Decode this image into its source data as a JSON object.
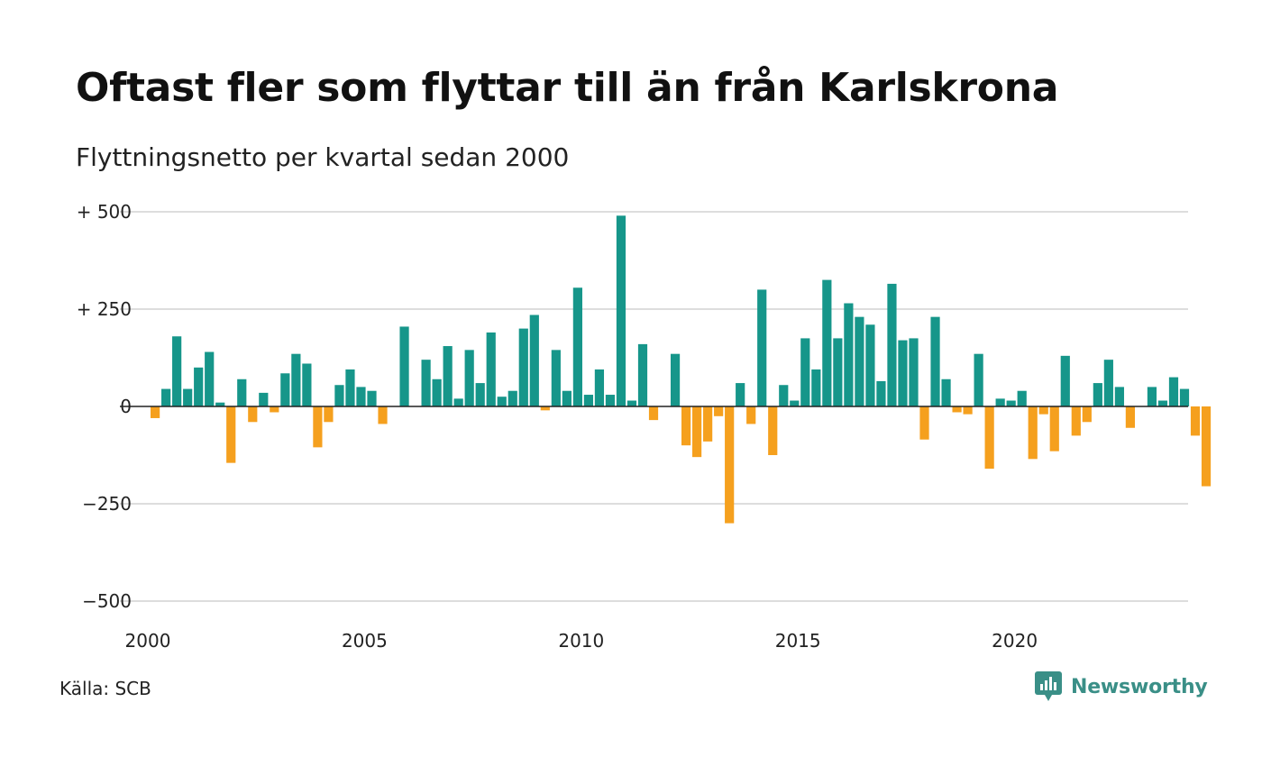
{
  "header": {
    "title": "Oftast fler som flyttar till än från Karlskrona",
    "subtitle": "Flyttningsnetto per kvartal sedan 2000"
  },
  "footer": {
    "source": "Källa: SCB",
    "brand": "Newsworthy",
    "brand_icon": "newsworthy-logo-icon"
  },
  "colors": {
    "positive": "#16968a",
    "negative": "#f5a01e",
    "grid": "#dddddd",
    "brand": "#3a8f87"
  },
  "chart_data": {
    "type": "bar",
    "title": "Oftast fler som flyttar till än från Karlskrona",
    "subtitle": "Flyttningsnetto per kvartal sedan 2000",
    "x_start": "2000 Q1",
    "x_tick_labels": [
      "2000",
      "2005",
      "2010",
      "2015",
      "2020"
    ],
    "y_ticks": [
      500,
      250,
      0,
      -250,
      -500
    ],
    "y_tick_labels": [
      "+ 500",
      "+ 250",
      "0",
      "−250",
      "−500"
    ],
    "ylim": [
      -500,
      500
    ],
    "grid": true,
    "legend": "none",
    "values": [
      -30,
      45,
      180,
      45,
      100,
      140,
      10,
      -145,
      70,
      -40,
      35,
      -15,
      85,
      135,
      110,
      -105,
      -40,
      55,
      95,
      50,
      40,
      -45,
      0,
      205,
      0,
      120,
      70,
      155,
      20,
      145,
      60,
      190,
      25,
      40,
      200,
      235,
      -10,
      145,
      40,
      305,
      30,
      95,
      30,
      490,
      15,
      160,
      -35,
      0,
      135,
      -100,
      -130,
      -90,
      -25,
      -300,
      60,
      -45,
      300,
      -125,
      55,
      15,
      175,
      95,
      325,
      175,
      265,
      230,
      210,
      65,
      315,
      170,
      175,
      -85,
      230,
      70,
      -15,
      -20,
      135,
      -160,
      20,
      15,
      40,
      -135,
      -20,
      -115,
      130,
      -75,
      -40,
      60,
      120,
      50,
      -55,
      0,
      50,
      15,
      75,
      45,
      -75,
      -205
    ]
  }
}
